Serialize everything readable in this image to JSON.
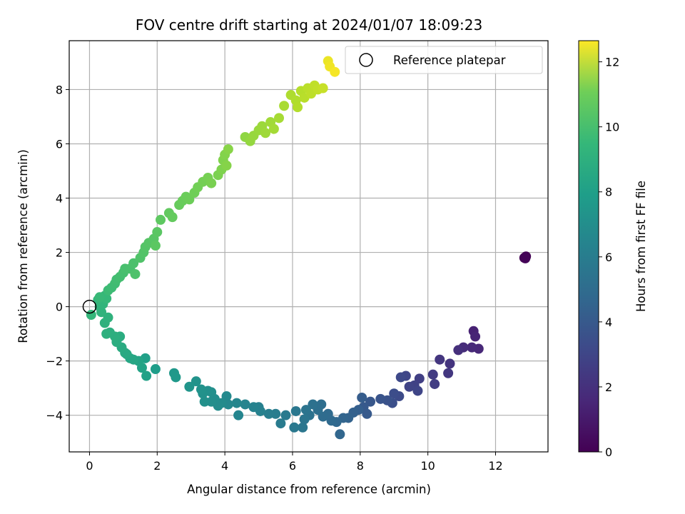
{
  "chart_data": {
    "type": "scatter",
    "title": "FOV centre drift starting at 2024/01/07 18:09:23",
    "xlabel": "Angular distance from reference (arcmin)",
    "ylabel": "Rotation from reference (arcmin)",
    "xlim": [
      -0.6,
      13.55
    ],
    "ylim": [
      -5.35,
      9.8
    ],
    "xticks": [
      0,
      2,
      4,
      6,
      8,
      10,
      12
    ],
    "yticks": [
      -4,
      -2,
      0,
      2,
      4,
      6,
      8
    ],
    "grid": true,
    "colormap": "viridis",
    "colorbar": {
      "label": "Hours from first FF file",
      "range": [
        0,
        12.65
      ],
      "ticks": [
        0,
        2,
        4,
        6,
        8,
        10,
        12
      ]
    },
    "legend": {
      "placement": "top-right",
      "entries": [
        "Reference platepar"
      ]
    },
    "reference_point": {
      "x": 0,
      "y": 0,
      "label": "Reference platepar"
    },
    "series": [
      {
        "points": [
          [
            12.85,
            1.8,
            0.0
          ],
          [
            12.9,
            1.85,
            0.05
          ],
          [
            12.88,
            1.78,
            0.1
          ],
          [
            11.35,
            -0.9,
            1.2
          ],
          [
            11.4,
            -1.1,
            1.3
          ],
          [
            11.5,
            -1.55,
            1.4
          ],
          [
            11.3,
            -1.5,
            1.5
          ],
          [
            11.05,
            -1.5,
            1.6
          ],
          [
            10.9,
            -1.6,
            1.75
          ],
          [
            10.65,
            -2.1,
            1.9
          ],
          [
            10.35,
            -1.95,
            2.0
          ],
          [
            10.6,
            -2.45,
            2.05
          ],
          [
            10.15,
            -2.5,
            2.2
          ],
          [
            10.2,
            -2.85,
            2.3
          ],
          [
            9.75,
            -2.65,
            2.4
          ],
          [
            9.6,
            -2.9,
            2.5
          ],
          [
            9.45,
            -2.95,
            2.6
          ],
          [
            9.7,
            -3.1,
            2.65
          ],
          [
            9.35,
            -2.55,
            2.7
          ],
          [
            9.2,
            -2.6,
            2.8
          ],
          [
            9.15,
            -3.3,
            2.9
          ],
          [
            9.0,
            -3.2,
            3.0
          ],
          [
            8.95,
            -3.55,
            3.1
          ],
          [
            8.8,
            -3.45,
            3.2
          ],
          [
            8.6,
            -3.4,
            3.3
          ],
          [
            8.3,
            -3.5,
            3.45
          ],
          [
            8.1,
            -3.7,
            3.55
          ],
          [
            8.2,
            -3.95,
            3.6
          ],
          [
            8.05,
            -3.35,
            3.7
          ],
          [
            7.95,
            -3.8,
            3.8
          ],
          [
            7.8,
            -3.9,
            3.9
          ],
          [
            7.65,
            -4.1,
            4.0
          ],
          [
            7.5,
            -4.1,
            4.1
          ],
          [
            7.4,
            -4.7,
            4.15
          ],
          [
            7.3,
            -4.25,
            4.2
          ],
          [
            7.15,
            -4.2,
            4.3
          ],
          [
            7.05,
            -3.95,
            4.4
          ],
          [
            6.9,
            -4.05,
            4.45
          ],
          [
            6.85,
            -3.6,
            4.55
          ],
          [
            6.75,
            -3.8,
            4.6
          ],
          [
            6.6,
            -3.6,
            4.7
          ],
          [
            6.5,
            -4.0,
            4.75
          ],
          [
            6.4,
            -3.8,
            4.85
          ],
          [
            6.35,
            -4.15,
            4.9
          ],
          [
            6.3,
            -4.45,
            5.0
          ],
          [
            6.1,
            -3.85,
            5.05
          ],
          [
            6.05,
            -4.45,
            5.1
          ],
          [
            5.8,
            -4.0,
            5.2
          ],
          [
            5.65,
            -4.3,
            5.25
          ],
          [
            5.5,
            -3.95,
            5.35
          ],
          [
            5.3,
            -3.95,
            5.4
          ],
          [
            5.0,
            -3.7,
            5.5
          ],
          [
            5.05,
            -3.85,
            5.55
          ],
          [
            4.85,
            -3.7,
            5.6
          ],
          [
            4.6,
            -3.6,
            5.7
          ],
          [
            4.4,
            -4.0,
            5.75
          ],
          [
            4.35,
            -3.55,
            5.8
          ],
          [
            4.1,
            -3.6,
            5.9
          ],
          [
            4.05,
            -3.3,
            5.95
          ],
          [
            3.9,
            -3.55,
            6.05
          ],
          [
            3.8,
            -3.65,
            6.1
          ],
          [
            3.7,
            -3.4,
            6.15
          ],
          [
            3.6,
            -3.5,
            6.2
          ],
          [
            3.6,
            -3.15,
            6.25
          ],
          [
            3.5,
            -3.1,
            6.3
          ],
          [
            3.4,
            -3.5,
            6.35
          ],
          [
            3.35,
            -3.2,
            6.4
          ],
          [
            3.3,
            -3.05,
            6.45
          ],
          [
            3.15,
            -2.75,
            6.5
          ],
          [
            2.95,
            -2.95,
            6.6
          ],
          [
            2.5,
            -2.45,
            6.75
          ],
          [
            2.55,
            -2.6,
            6.8
          ],
          [
            1.95,
            -2.3,
            7.0
          ],
          [
            1.65,
            -1.9,
            7.15
          ],
          [
            1.68,
            -2.55,
            7.2
          ],
          [
            1.55,
            -2.25,
            7.3
          ],
          [
            1.45,
            -2.0,
            7.35
          ],
          [
            1.3,
            -1.95,
            7.45
          ],
          [
            1.2,
            -1.9,
            7.5
          ],
          [
            1.1,
            -1.75,
            7.6
          ],
          [
            1.05,
            -1.7,
            7.65
          ],
          [
            0.95,
            -1.5,
            7.7
          ],
          [
            0.9,
            -1.1,
            7.8
          ],
          [
            0.8,
            -1.3,
            7.85
          ],
          [
            0.75,
            -1.1,
            7.9
          ],
          [
            0.6,
            -0.95,
            7.95
          ],
          [
            0.5,
            -1.0,
            8.0
          ],
          [
            0.45,
            -0.6,
            8.05
          ],
          [
            0.55,
            -0.4,
            8.1
          ],
          [
            0.35,
            -0.2,
            8.15
          ],
          [
            0.3,
            0.0,
            8.2
          ],
          [
            0.4,
            0.1,
            8.25
          ],
          [
            0.25,
            0.25,
            8.3
          ],
          [
            0.05,
            -0.3,
            8.35
          ],
          [
            0.45,
            0.4,
            8.4
          ],
          [
            0.5,
            0.3,
            8.45
          ],
          [
            0.3,
            0.35,
            8.5
          ],
          [
            0.55,
            0.6,
            8.6
          ],
          [
            0.65,
            0.7,
            8.65
          ],
          [
            0.75,
            0.85,
            8.7
          ],
          [
            0.8,
            1.0,
            8.75
          ],
          [
            0.9,
            1.1,
            8.8
          ],
          [
            1.0,
            1.25,
            8.85
          ],
          [
            1.05,
            1.4,
            8.9
          ],
          [
            1.2,
            1.4,
            8.95
          ],
          [
            1.3,
            1.6,
            9.0
          ],
          [
            1.35,
            1.2,
            9.05
          ],
          [
            1.5,
            1.8,
            9.1
          ],
          [
            1.6,
            2.0,
            9.15
          ],
          [
            1.65,
            2.2,
            9.2
          ],
          [
            1.75,
            2.35,
            9.25
          ],
          [
            1.9,
            2.5,
            9.3
          ],
          [
            2.0,
            2.75,
            9.35
          ],
          [
            1.95,
            2.25,
            9.4
          ],
          [
            2.1,
            3.2,
            9.45
          ],
          [
            2.35,
            3.45,
            9.55
          ],
          [
            2.45,
            3.3,
            9.6
          ],
          [
            2.65,
            3.75,
            9.65
          ],
          [
            2.75,
            3.9,
            9.7
          ],
          [
            2.85,
            4.05,
            9.75
          ],
          [
            2.95,
            3.95,
            9.8
          ],
          [
            3.1,
            4.2,
            9.85
          ],
          [
            3.2,
            4.4,
            9.9
          ],
          [
            3.35,
            4.6,
            9.95
          ],
          [
            3.5,
            4.75,
            10.0
          ],
          [
            3.6,
            4.55,
            10.05
          ],
          [
            3.8,
            4.85,
            10.1
          ],
          [
            3.9,
            5.05,
            10.15
          ],
          [
            3.95,
            5.4,
            10.2
          ],
          [
            4.0,
            5.6,
            10.25
          ],
          [
            4.05,
            5.2,
            10.3
          ],
          [
            4.1,
            5.8,
            10.35
          ],
          [
            4.6,
            6.25,
            10.5
          ],
          [
            4.75,
            6.1,
            10.6
          ],
          [
            4.85,
            6.3,
            10.65
          ],
          [
            5.0,
            6.5,
            10.7
          ],
          [
            5.1,
            6.65,
            10.75
          ],
          [
            5.2,
            6.4,
            10.8
          ],
          [
            5.35,
            6.8,
            10.85
          ],
          [
            5.45,
            6.55,
            10.9
          ],
          [
            5.6,
            6.95,
            10.95
          ],
          [
            5.75,
            7.4,
            11.0
          ],
          [
            5.95,
            7.8,
            11.1
          ],
          [
            6.1,
            7.6,
            11.15
          ],
          [
            6.15,
            7.35,
            11.2
          ],
          [
            6.25,
            7.95,
            11.25
          ],
          [
            6.35,
            7.7,
            11.3
          ],
          [
            6.45,
            8.05,
            11.35
          ],
          [
            6.55,
            7.85,
            11.4
          ],
          [
            6.65,
            8.15,
            11.45
          ],
          [
            6.75,
            8.0,
            11.5
          ],
          [
            6.9,
            8.05,
            11.6
          ],
          [
            7.05,
            9.05,
            12.3
          ],
          [
            7.1,
            8.85,
            12.4
          ],
          [
            7.25,
            8.65,
            12.5
          ]
        ]
      }
    ]
  }
}
